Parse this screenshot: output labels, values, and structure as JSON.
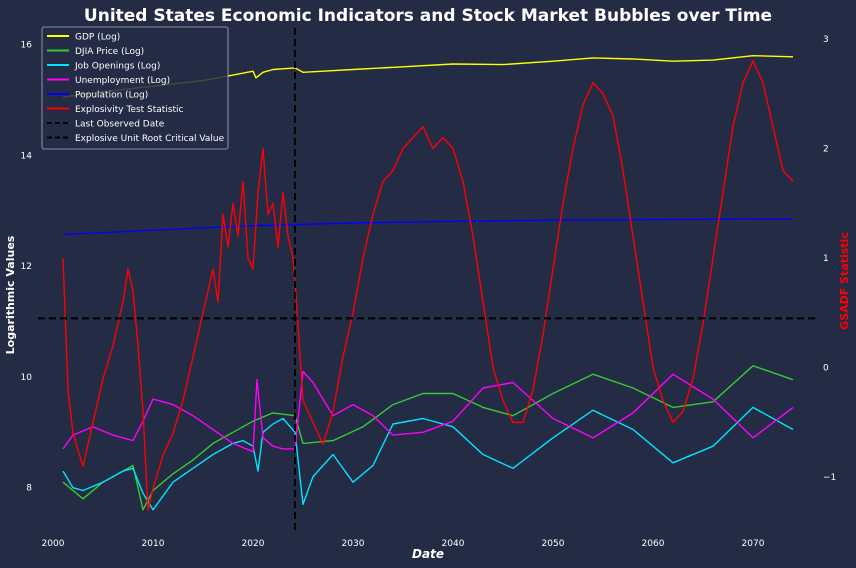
{
  "chart_data": {
    "type": "line",
    "title": "United States Economic Indicators and Stock Market Bubbles over Time",
    "xlabel": "Date",
    "ylabel": "Logarithmic Values",
    "y2label": "GSADF Statistic",
    "xlim": [
      1998.5,
      2076.5
    ],
    "ylim": [
      7.2,
      16.3
    ],
    "y2lim": [
      -1.5,
      3.1
    ],
    "x_ticks": [
      "2000",
      "2010",
      "2020",
      "2030",
      "2040",
      "2050",
      "2060",
      "2070"
    ],
    "y_ticks": [
      "8",
      "10",
      "12",
      "14",
      "16"
    ],
    "y2_ticks": [
      "−1",
      "0",
      "1",
      "2",
      "3"
    ],
    "grid": false,
    "legend_position": "top-left",
    "last_observed_date": 2024.2,
    "critical_value": 0.45,
    "series": [
      {
        "name": "GDP (Log)",
        "axis": "left",
        "color": "#ffff00",
        "dash": false,
        "x": [
          2001,
          2005,
          2010,
          2015,
          2018,
          2020,
          2020.3,
          2021,
          2022,
          2024.2,
          2025,
          2027,
          2030,
          2035,
          2040,
          2045,
          2050,
          2054,
          2058,
          2062,
          2066,
          2070,
          2074
        ],
        "y": [
          15.05,
          15.15,
          15.25,
          15.35,
          15.45,
          15.52,
          15.4,
          15.5,
          15.55,
          15.58,
          15.5,
          15.52,
          15.55,
          15.6,
          15.65,
          15.64,
          15.7,
          15.76,
          15.74,
          15.7,
          15.72,
          15.8,
          15.78
        ]
      },
      {
        "name": "DJIA Price (Log)",
        "axis": "left",
        "color": "#33cc33",
        "dash": false,
        "x": [
          2001,
          2002,
          2003,
          2005,
          2007,
          2008,
          2009,
          2010,
          2012,
          2014,
          2016,
          2018,
          2020,
          2022,
          2024.2,
          2025,
          2028,
          2031,
          2034,
          2037,
          2040,
          2043,
          2046,
          2050,
          2054,
          2058,
          2062,
          2066,
          2070,
          2074
        ],
        "y": [
          8.1,
          7.95,
          7.8,
          8.1,
          8.3,
          8.4,
          7.6,
          7.95,
          8.25,
          8.5,
          8.8,
          9.0,
          9.2,
          9.35,
          9.3,
          8.8,
          8.85,
          9.1,
          9.5,
          9.7,
          9.7,
          9.45,
          9.3,
          9.7,
          10.05,
          9.8,
          9.45,
          9.55,
          10.2,
          9.95
        ]
      },
      {
        "name": "Job Openings (Log)",
        "axis": "left",
        "color": "#00e5ff",
        "dash": false,
        "x": [
          2001,
          2002,
          2003,
          2005,
          2007,
          2008,
          2009,
          2010,
          2012,
          2014,
          2016,
          2018,
          2019,
          2020,
          2020.5,
          2021,
          2022,
          2023,
          2024.2,
          2025,
          2026,
          2028,
          2030,
          2032,
          2034,
          2037,
          2040,
          2043,
          2046,
          2050,
          2054,
          2058,
          2062,
          2066,
          2070,
          2074
        ],
        "y": [
          8.3,
          8.0,
          7.95,
          8.1,
          8.3,
          8.35,
          7.9,
          7.6,
          8.1,
          8.35,
          8.6,
          8.8,
          8.85,
          8.75,
          8.3,
          9.0,
          9.15,
          9.25,
          9.0,
          7.7,
          8.2,
          8.6,
          8.1,
          8.4,
          9.15,
          9.25,
          9.1,
          8.6,
          8.35,
          8.9,
          9.4,
          9.05,
          8.45,
          8.75,
          9.45,
          9.05
        ]
      },
      {
        "name": "Unemployment (Log)",
        "axis": "left",
        "color": "#ff00ff",
        "dash": false,
        "x": [
          2001,
          2002,
          2004,
          2006,
          2008,
          2009,
          2010,
          2012,
          2014,
          2016,
          2018,
          2020,
          2020.4,
          2021,
          2022,
          2023,
          2024.2,
          2025,
          2026,
          2028,
          2030,
          2032,
          2034,
          2037,
          2040,
          2043,
          2046,
          2050,
          2054,
          2058,
          2062,
          2066,
          2070,
          2074
        ],
        "y": [
          8.7,
          8.95,
          9.1,
          8.95,
          8.85,
          9.2,
          9.6,
          9.5,
          9.3,
          9.05,
          8.8,
          8.65,
          9.95,
          8.9,
          8.75,
          8.7,
          8.7,
          10.1,
          9.9,
          9.3,
          9.5,
          9.3,
          8.95,
          9.0,
          9.2,
          9.8,
          9.9,
          9.25,
          8.9,
          9.35,
          10.05,
          9.6,
          8.9,
          9.45
        ]
      },
      {
        "name": "Population (Log)",
        "axis": "left",
        "color": "#0000ff",
        "dash": false,
        "x": [
          2001,
          2010,
          2020,
          2030,
          2040,
          2050,
          2060,
          2070,
          2074
        ],
        "y": [
          12.57,
          12.65,
          12.73,
          12.78,
          12.81,
          12.83,
          12.84,
          12.85,
          12.85
        ]
      },
      {
        "name": "Explosivity Test Statistic",
        "axis": "right",
        "color": "#ff0000",
        "dash": false,
        "x": [
          2001,
          2001.5,
          2002,
          2003,
          2004,
          2005,
          2006,
          2007,
          2007.5,
          2008,
          2008.5,
          2009,
          2009.5,
          2010,
          2011,
          2012,
          2013,
          2014,
          2015,
          2016,
          2016.5,
          2017,
          2017.5,
          2018,
          2018.5,
          2019,
          2019.5,
          2020,
          2020.5,
          2021,
          2021.5,
          2022,
          2022.5,
          2023,
          2023.5,
          2024,
          2024.2,
          2025,
          2026,
          2027,
          2028,
          2029,
          2030,
          2031,
          2032,
          2033,
          2034,
          2035,
          2036,
          2037,
          2038,
          2039,
          2040,
          2041,
          2042,
          2043,
          2044,
          2045,
          2046,
          2047,
          2048,
          2049,
          2050,
          2051,
          2052,
          2053,
          2054,
          2055,
          2056,
          2057,
          2058,
          2059,
          2060,
          2061,
          2062,
          2063,
          2064,
          2065,
          2066,
          2067,
          2068,
          2069,
          2070,
          2071,
          2072,
          2073,
          2074
        ],
        "y": [
          1.0,
          -0.2,
          -0.6,
          -0.9,
          -0.5,
          -0.1,
          0.2,
          0.6,
          0.9,
          0.7,
          0.2,
          -0.4,
          -1.3,
          -1.1,
          -0.8,
          -0.6,
          -0.3,
          0.1,
          0.5,
          0.9,
          0.6,
          1.4,
          1.1,
          1.5,
          1.2,
          1.7,
          1.0,
          0.9,
          1.6,
          2.0,
          1.4,
          1.5,
          1.1,
          1.6,
          1.2,
          1.0,
          0.8,
          -0.3,
          -0.5,
          -0.7,
          -0.4,
          0.1,
          0.5,
          1.0,
          1.4,
          1.7,
          1.8,
          2.0,
          2.1,
          2.2,
          2.0,
          2.1,
          2.0,
          1.7,
          1.2,
          0.6,
          0.0,
          -0.3,
          -0.5,
          -0.5,
          -0.2,
          0.3,
          0.9,
          1.5,
          2.0,
          2.4,
          2.6,
          2.5,
          2.3,
          1.8,
          1.2,
          0.6,
          0.0,
          -0.3,
          -0.5,
          -0.4,
          -0.1,
          0.4,
          1.0,
          1.6,
          2.2,
          2.6,
          2.8,
          2.6,
          2.2,
          1.8,
          1.7
        ]
      },
      {
        "name": "Last Observed Date",
        "axis": "left",
        "color": "#000000",
        "dash": true
      },
      {
        "name": "Explosive Unit Root Critical Value",
        "axis": "right",
        "color": "#000000",
        "dash": true
      }
    ]
  }
}
